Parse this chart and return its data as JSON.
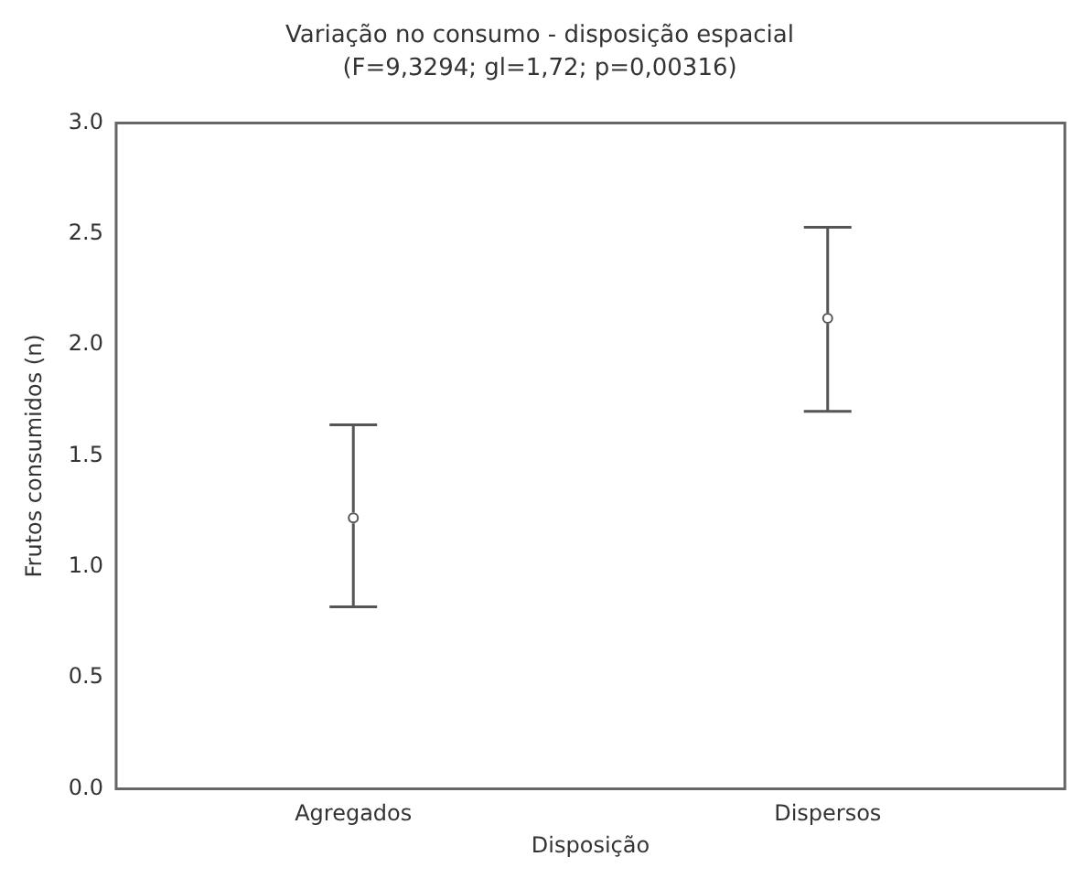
{
  "chart_data": {
    "type": "scatter",
    "title": "Variação no consumo - disposição espacial",
    "subtitle": "(F=9,3294; gl=1,72; p=0,00316)",
    "xlabel": "Disposição",
    "ylabel": "Frutos consumidos (n)",
    "categories": [
      "Agregados",
      "Dispersos"
    ],
    "values": [
      1.22,
      2.12
    ],
    "errors": [
      [
        0.82,
        1.64
      ],
      [
        1.7,
        2.53
      ]
    ],
    "color": "#555555",
    "marker": "circle",
    "grid": false,
    "legend": false,
    "ylim": [
      0,
      3.0
    ],
    "yticks": [
      {
        "value": 0,
        "label": "0.0"
      },
      {
        "value": 0.5,
        "label": "0.5"
      },
      {
        "value": 1,
        "label": "1.0"
      },
      {
        "value": 1.5,
        "label": "1.5"
      },
      {
        "value": 2,
        "label": "2.0"
      },
      {
        "value": 2.5,
        "label": "2.5"
      },
      {
        "value": 3,
        "label": "3.0"
      }
    ]
  }
}
